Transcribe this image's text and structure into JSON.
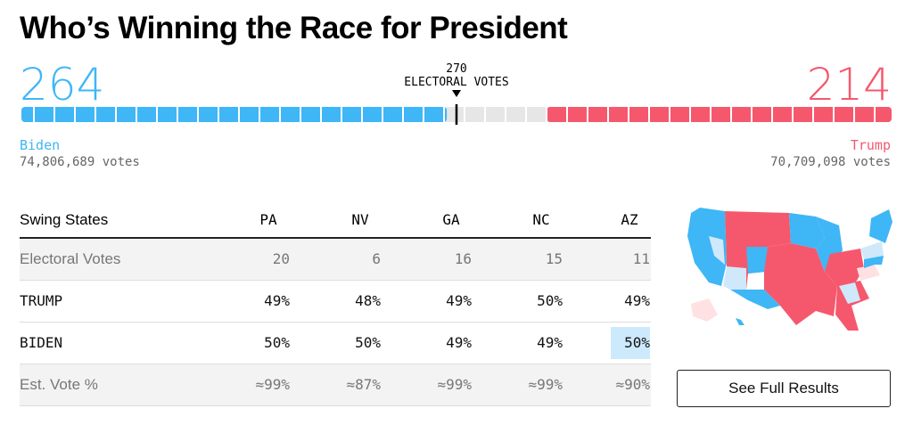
{
  "title": "Who’s Winning the Race for President",
  "threshold": {
    "value": 270,
    "label": "ELECTORAL VOTES"
  },
  "candidates": [
    {
      "name": "Biden",
      "electoral_votes": 264,
      "votes": "74,806,689 votes",
      "color": "#3fb6f6"
    },
    {
      "name": "Trump",
      "electoral_votes": 214,
      "votes": "70,709,098 votes",
      "color": "#f5586d"
    }
  ],
  "table": {
    "header": [
      "Swing States",
      "PA",
      "NV",
      "GA",
      "NC",
      "AZ"
    ],
    "rows": [
      [
        "Electoral Votes",
        "20",
        "6",
        "16",
        "15",
        "11"
      ],
      [
        "TRUMP",
        "49%",
        "48%",
        "49%",
        "50%",
        "49%"
      ],
      [
        "BIDEN",
        "50%",
        "50%",
        "49%",
        "49%",
        "50%"
      ],
      [
        "Est. Vote %",
        "≈99%",
        "≈87%",
        "≈99%",
        "≈99%",
        "≈90%"
      ]
    ]
  },
  "button": "See Full Results"
}
